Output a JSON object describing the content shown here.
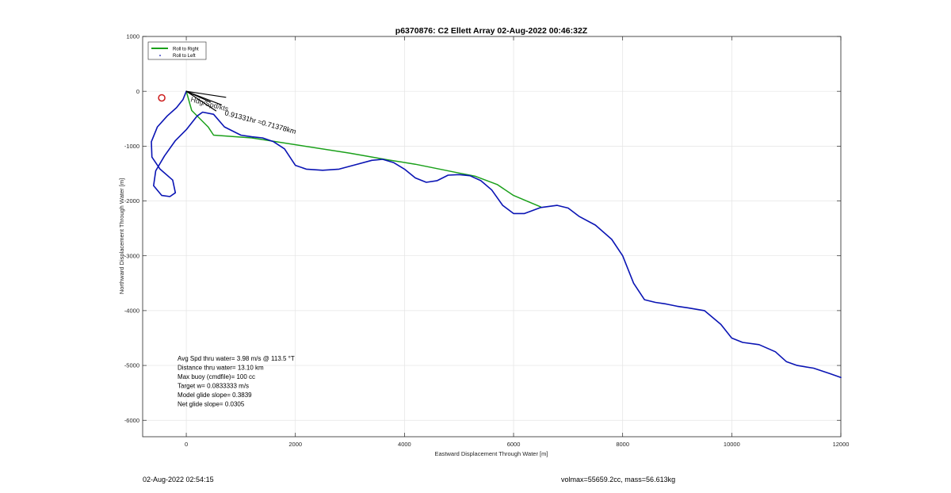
{
  "chart_data": {
    "type": "line",
    "title": "p6370876: C2 Ellett Array 02-Aug-2022 00:46:32Z",
    "xlabel": "Eastward Displacement Through Water [m]",
    "ylabel": "Northward Displacement Through Water [m]",
    "xlim": [
      -800,
      12000
    ],
    "ylim": [
      -6300,
      1000
    ],
    "xticks": [
      0,
      2000,
      4000,
      6000,
      8000,
      10000,
      12000
    ],
    "yticks": [
      1000,
      0,
      -1000,
      -2000,
      -3000,
      -4000,
      -5000,
      -6000
    ],
    "grid": true,
    "legend_position": "top-left",
    "colors": {
      "roll_right": "#1aa01a",
      "roll_left": "#0a14b4",
      "marker": "#cc1a1a",
      "vectors": "#000000",
      "grid": "#e4e4e4"
    },
    "series": [
      {
        "name": "Roll to Right",
        "style": "line",
        "x": [
          0,
          100,
          400,
          500,
          1200,
          3000,
          3700,
          4200,
          5000,
          5300,
          5700,
          6000,
          6500
        ],
        "y": [
          0,
          -350,
          -650,
          -800,
          -850,
          -1130,
          -1250,
          -1330,
          -1490,
          -1550,
          -1700,
          -1900,
          -2110
        ]
      },
      {
        "name": "Roll to Left",
        "style": "line",
        "x": [
          0,
          -60,
          -180,
          -350,
          -530,
          -640,
          -630,
          -480,
          -250,
          -200,
          -300,
          -450,
          -600,
          -560,
          -400,
          -200,
          0,
          200,
          300,
          500,
          700,
          1000,
          1200,
          1400,
          1600,
          1800,
          2000,
          2200,
          2500,
          2800,
          3100,
          3400,
          3600,
          3800,
          4000,
          4200,
          4400,
          4600,
          4800,
          5000,
          5200,
          5400,
          5600,
          5800,
          6000,
          6200,
          6500,
          6800,
          7000,
          7200,
          7500,
          7800,
          8000,
          8200,
          8400,
          8600,
          8800,
          9000,
          9200,
          9500,
          9800,
          10000,
          10200,
          10500,
          10800,
          11000,
          11200,
          11500,
          11800,
          12000
        ],
        "y": [
          0,
          -150,
          -300,
          -450,
          -650,
          -920,
          -1200,
          -1420,
          -1620,
          -1850,
          -1920,
          -1900,
          -1720,
          -1450,
          -1180,
          -900,
          -700,
          -450,
          -380,
          -420,
          -650,
          -800,
          -830,
          -850,
          -920,
          -1050,
          -1350,
          -1420,
          -1440,
          -1420,
          -1340,
          -1260,
          -1240,
          -1300,
          -1420,
          -1580,
          -1660,
          -1630,
          -1530,
          -1520,
          -1540,
          -1630,
          -1800,
          -2080,
          -2230,
          -2230,
          -2120,
          -2080,
          -2130,
          -2280,
          -2440,
          -2700,
          -3000,
          -3500,
          -3800,
          -3850,
          -3880,
          -3920,
          -3950,
          -4000,
          -4250,
          -4500,
          -4580,
          -4620,
          -4750,
          -4930,
          -5000,
          -5050,
          -5150,
          -5220
        ]
      }
    ],
    "annotations": {
      "vector_label": "0.91331hr =0.71378km",
      "vector_label_overlap": "Hdg/Spd/kts",
      "stats": [
        "Avg Spd thru water=  3.98 m/s @ 113.5 °T",
        "Distance thru water= 13.10 km",
        "Max buoy (cmdfile)= 100 cc",
        "Target w= 0.0833333 m/s",
        "Model glide slope= 0.3839",
        "Net glide slope= 0.0305"
      ]
    },
    "marker": {
      "x": -450,
      "y": -120,
      "shape": "circle"
    },
    "vectors": [
      {
        "x0": 0,
        "y0": 0,
        "x1": 730,
        "y1": -110
      },
      {
        "x0": 0,
        "y0": 0,
        "x1": 650,
        "y1": -250
      },
      {
        "x0": 0,
        "y0": 0,
        "x1": 550,
        "y1": -360
      },
      {
        "x0": 0,
        "y0": 0,
        "x1": 450,
        "y1": -200
      }
    ]
  },
  "footer": {
    "left": "02-Aug-2022 02:54:15",
    "right": "volmax=55659.2cc, mass=56.613kg"
  }
}
